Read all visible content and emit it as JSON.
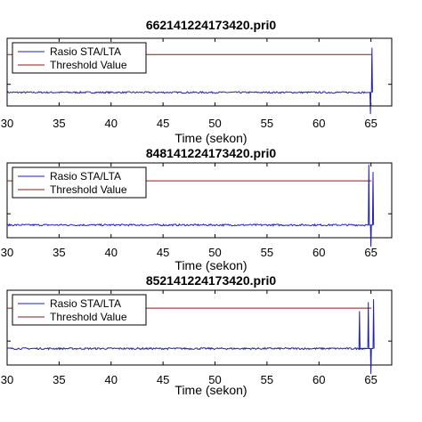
{
  "chart_data": [
    {
      "type": "line",
      "title": "662141224173420.pri0",
      "xlabel": "Time (sekon)",
      "xlim": [
        30,
        67
      ],
      "xticks": [
        "30",
        "35",
        "40",
        "45",
        "50",
        "55",
        "60",
        "65"
      ],
      "ylim": [
        0,
        5
      ],
      "legend": "top-left",
      "series": [
        {
          "name": "Rasio STA/LTA",
          "color": "#1f1fbf",
          "baseline": 1.0,
          "spikes": [
            {
              "x": 64.95,
              "y": -0.6
            },
            {
              "x": 65.1,
              "y": 4.3
            }
          ]
        },
        {
          "name": "Threshold Value",
          "color": "#8b1a1a",
          "value": 3.8
        }
      ]
    },
    {
      "type": "line",
      "title": "848141224173420.pri0",
      "xlabel": "Time (sekon)",
      "xlim": [
        30,
        67
      ],
      "xticks": [
        "30",
        "35",
        "40",
        "45",
        "50",
        "55",
        "60",
        "65"
      ],
      "ylim": [
        0,
        5
      ],
      "legend": "top-left",
      "series": [
        {
          "name": "Rasio STA/LTA",
          "color": "#1f1fbf",
          "baseline": 0.85,
          "spikes": [
            {
              "x": 64.8,
              "y": 4.9
            },
            {
              "x": 65.0,
              "y": -0.6
            },
            {
              "x": 65.2,
              "y": 4.4
            }
          ]
        },
        {
          "name": "Threshold Value",
          "color": "#8b1a1a",
          "value": 3.8
        }
      ]
    },
    {
      "type": "line",
      "title": "852141224173420.pri0",
      "xlabel": "Time (sekon)",
      "xlim": [
        30,
        67
      ],
      "xticks": [
        "30",
        "35",
        "40",
        "45",
        "50",
        "55",
        "60",
        "65"
      ],
      "ylim": [
        0,
        5
      ],
      "legend": "top-left",
      "series": [
        {
          "name": "Rasio STA/LTA",
          "color": "#1f1fbf",
          "baseline": 1.1,
          "spikes": [
            {
              "x": 63.9,
              "y": 3.6
            },
            {
              "x": 64.75,
              "y": 4.2
            },
            {
              "x": 65.0,
              "y": -0.6
            },
            {
              "x": 65.25,
              "y": 4.4
            }
          ]
        },
        {
          "name": "Threshold Value",
          "color": "#8b1a1a",
          "value": 3.8
        }
      ]
    }
  ]
}
